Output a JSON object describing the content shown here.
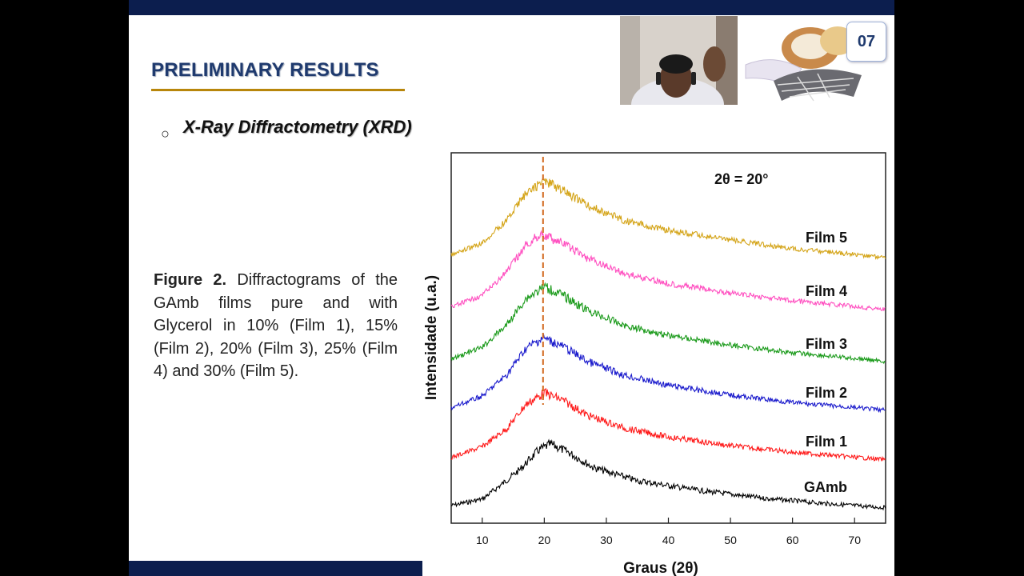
{
  "slide": {
    "title": "PRELIMINARY RESULTS",
    "subtitle": "X-Ray Diffractometry (XRD)",
    "bullet_symbol": "○",
    "page_number": "07",
    "caption_lead": "Figure 2.",
    "caption_text": " Diffractograms of the GAmb films pure and with Glycerol in 10% (Film 1), 15% (Film 2), 20% (Film 3), 25% (Film 4) and 30% (Film 5)."
  },
  "colors": {
    "bar": "#0c1e4e",
    "title": "#1f3a6e",
    "underline": "#b8860b"
  },
  "chart_data": {
    "type": "line",
    "xlabel": "Graus (2θ)",
    "ylabel": "Intensidade (u.a.)",
    "xlim": [
      5,
      75
    ],
    "xticks": [
      10,
      20,
      30,
      40,
      50,
      60,
      70
    ],
    "annotation": "2θ = 20°",
    "reference_line_x": 19.8,
    "yticks_shown": false,
    "series": [
      {
        "name": "GAmb",
        "color": "#000000",
        "peak_x": 21.0,
        "points": [
          [
            5,
            0.3
          ],
          [
            10,
            0.9
          ],
          [
            13,
            2.2
          ],
          [
            16,
            3.6
          ],
          [
            19,
            5.4
          ],
          [
            21,
            6.0
          ],
          [
            24,
            5.2
          ],
          [
            28,
            3.8
          ],
          [
            35,
            2.6
          ],
          [
            45,
            1.7
          ],
          [
            55,
            1.0
          ],
          [
            65,
            0.5
          ],
          [
            75,
            0.1
          ]
        ]
      },
      {
        "name": "Film 1",
        "color": "#ff1a1a",
        "peak_x": 20.0,
        "points": [
          [
            5,
            0.3
          ],
          [
            10,
            1.3
          ],
          [
            14,
            3.0
          ],
          [
            17,
            5.2
          ],
          [
            20,
            6.3
          ],
          [
            23,
            5.6
          ],
          [
            27,
            4.2
          ],
          [
            33,
            3.0
          ],
          [
            40,
            2.2
          ],
          [
            50,
            1.4
          ],
          [
            60,
            0.8
          ],
          [
            75,
            0.1
          ]
        ]
      },
      {
        "name": "Film 2",
        "color": "#1a1acc",
        "peak_x": 19.8,
        "points": [
          [
            5,
            0.3
          ],
          [
            10,
            1.4
          ],
          [
            14,
            3.4
          ],
          [
            17,
            5.8
          ],
          [
            19.8,
            6.8
          ],
          [
            23,
            6.0
          ],
          [
            27,
            4.6
          ],
          [
            33,
            3.3
          ],
          [
            40,
            2.4
          ],
          [
            50,
            1.5
          ],
          [
            60,
            0.8
          ],
          [
            75,
            0.1
          ]
        ]
      },
      {
        "name": "Film 3",
        "color": "#1a9a1a",
        "peak_x": 20.0,
        "points": [
          [
            5,
            0.3
          ],
          [
            10,
            1.4
          ],
          [
            14,
            3.5
          ],
          [
            17,
            5.9
          ],
          [
            20,
            7.0
          ],
          [
            23,
            6.2
          ],
          [
            27,
            4.8
          ],
          [
            33,
            3.4
          ],
          [
            40,
            2.5
          ],
          [
            50,
            1.6
          ],
          [
            60,
            0.9
          ],
          [
            75,
            0.1
          ]
        ]
      },
      {
        "name": "Film 4",
        "color": "#ff4fc0",
        "peak_x": 19.5,
        "points": [
          [
            5,
            0.3
          ],
          [
            10,
            1.4
          ],
          [
            14,
            3.6
          ],
          [
            17,
            6.0
          ],
          [
            19.5,
            7.1
          ],
          [
            23,
            6.2
          ],
          [
            27,
            4.8
          ],
          [
            33,
            3.4
          ],
          [
            40,
            2.5
          ],
          [
            50,
            1.6
          ],
          [
            60,
            0.9
          ],
          [
            75,
            0.1
          ]
        ]
      },
      {
        "name": "Film 5",
        "color": "#d4a418",
        "peak_x": 20.0,
        "points": [
          [
            5,
            0.3
          ],
          [
            10,
            1.4
          ],
          [
            14,
            3.6
          ],
          [
            17,
            6.0
          ],
          [
            20,
            7.2
          ],
          [
            23,
            6.3
          ],
          [
            27,
            4.9
          ],
          [
            33,
            3.5
          ],
          [
            40,
            2.6
          ],
          [
            50,
            1.7
          ],
          [
            60,
            0.9
          ],
          [
            75,
            0.1
          ]
        ]
      }
    ]
  }
}
